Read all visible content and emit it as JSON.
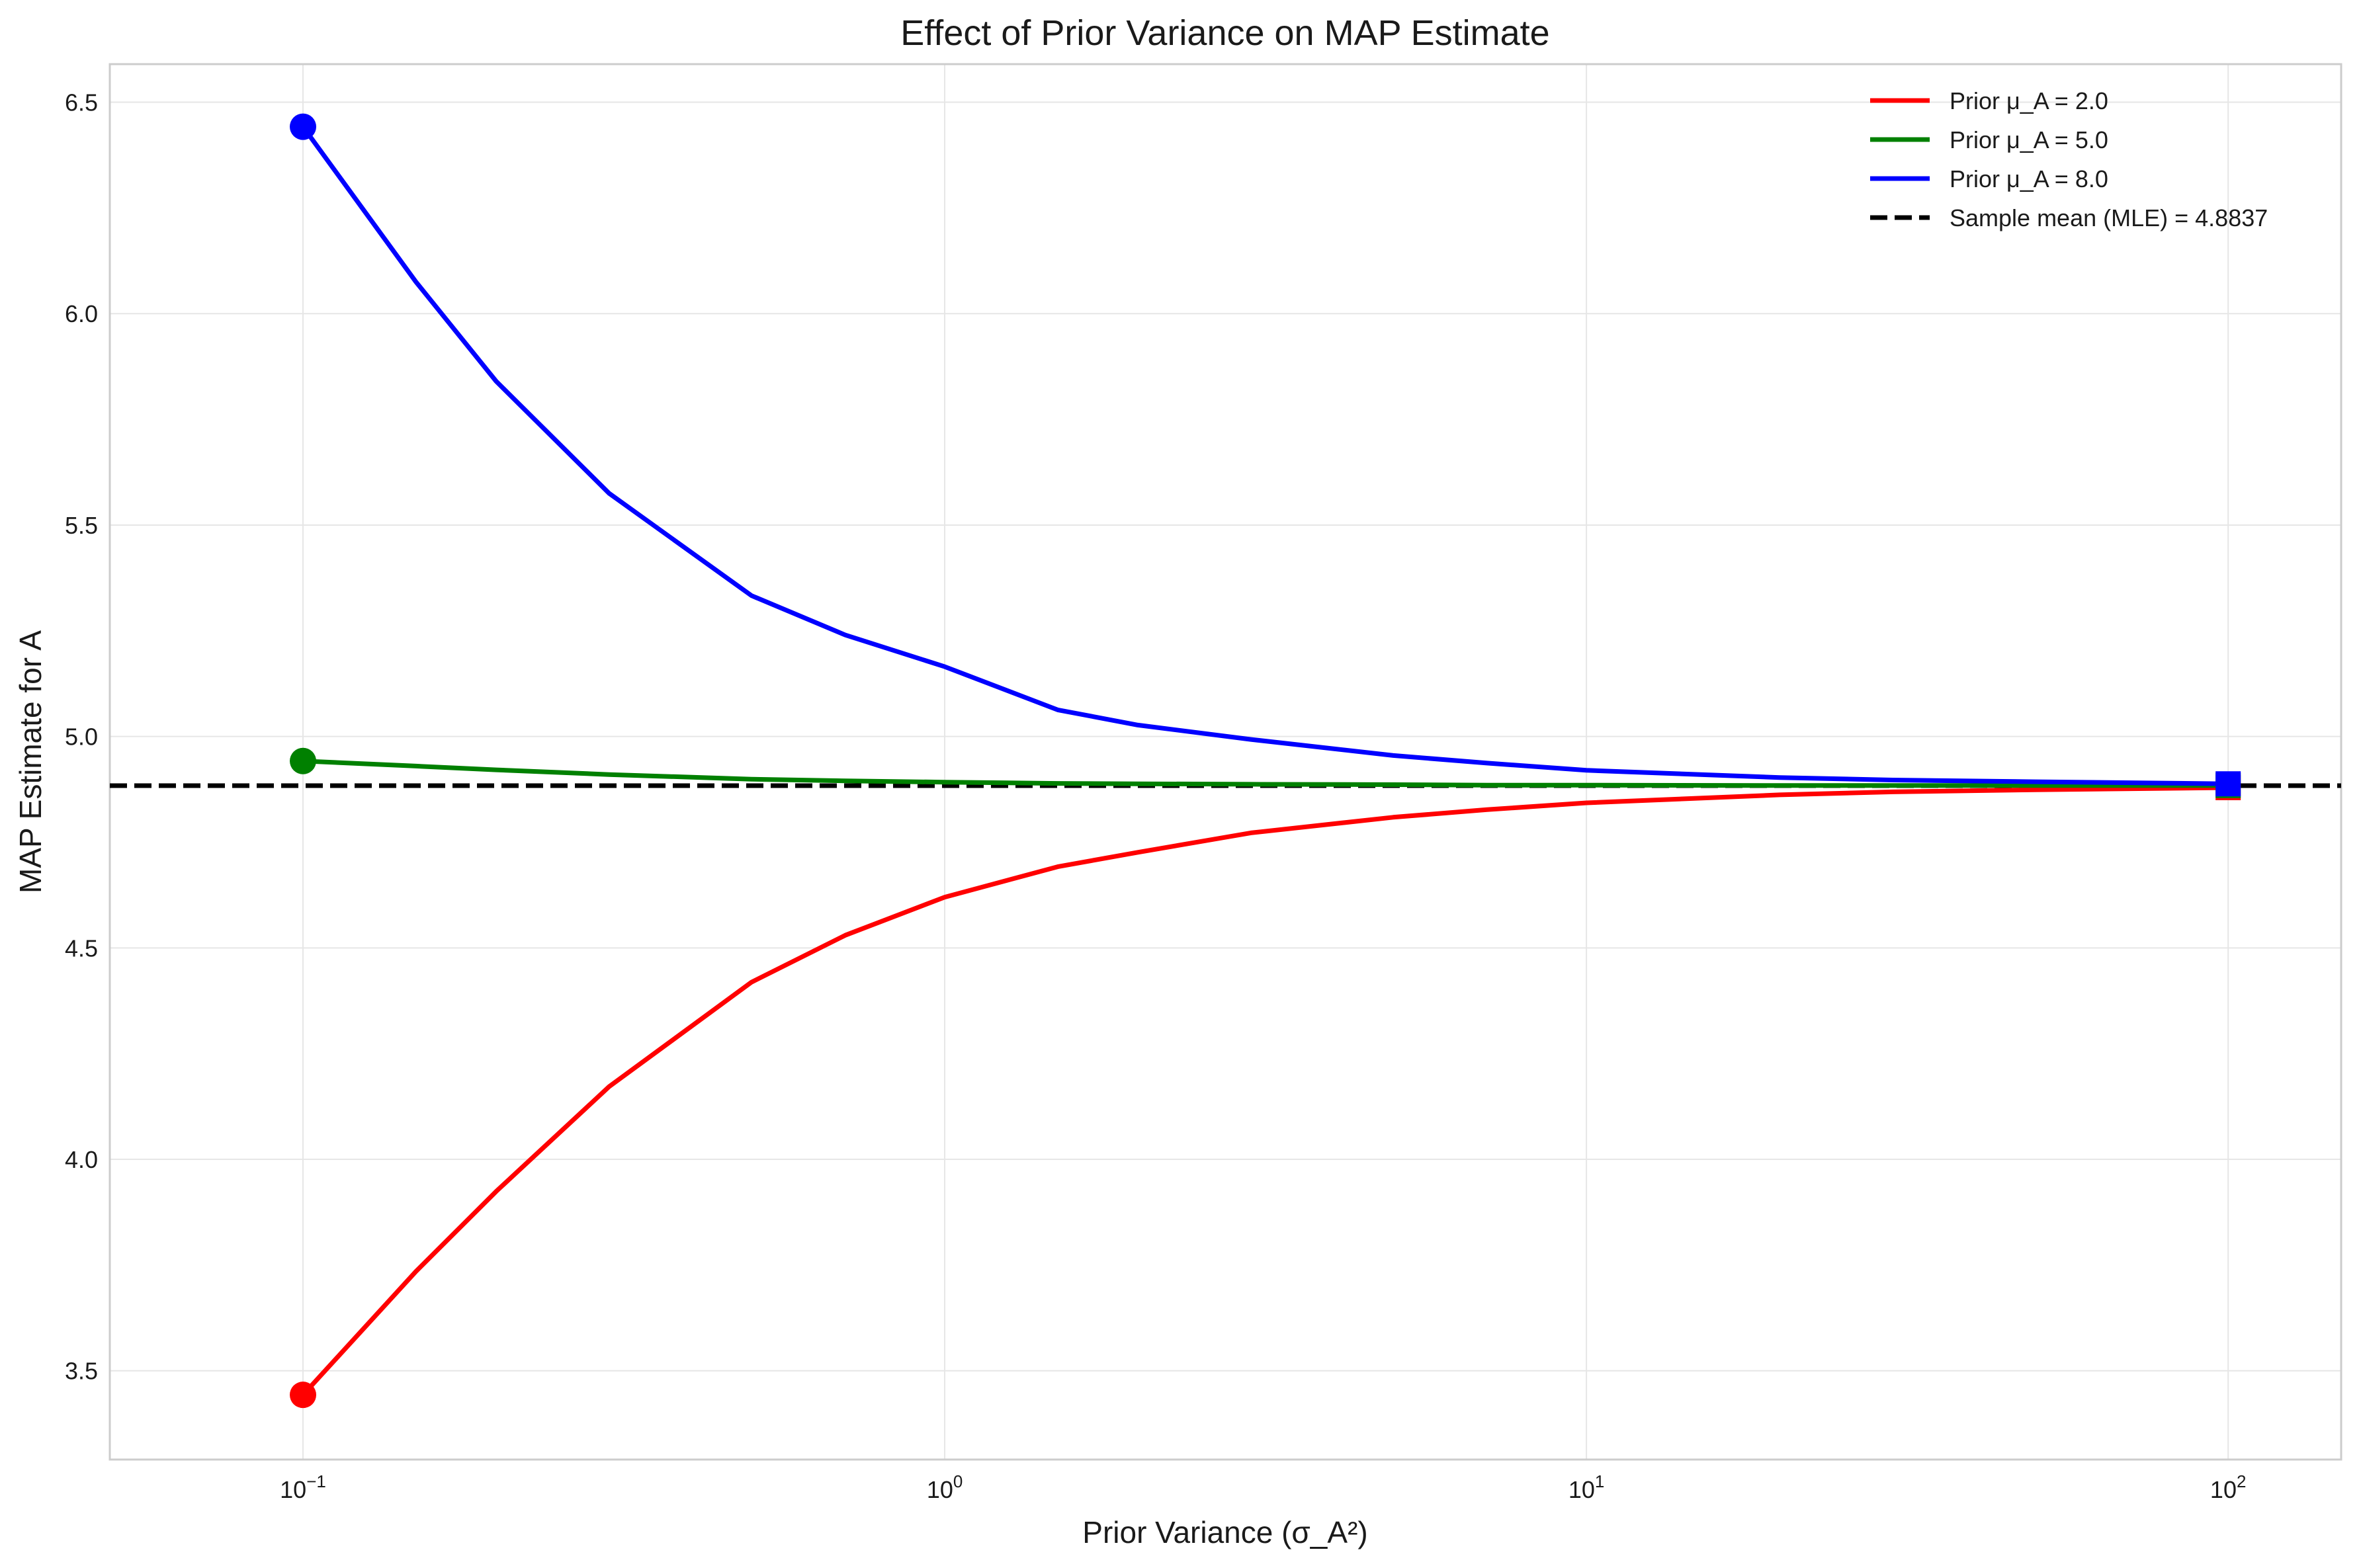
{
  "chart_data": {
    "type": "line",
    "title": "Effect of Prior Variance on MAP Estimate",
    "xlabel": "Prior Variance (σ_A²)",
    "ylabel": "MAP Estimate for A",
    "x_scale": "log",
    "xlim": [
      0.05,
      150
    ],
    "ylim": [
      3.29,
      6.59
    ],
    "x_ticks": [
      {
        "value": 0.1,
        "base": "10",
        "exp": "−1"
      },
      {
        "value": 1,
        "base": "10",
        "exp": "0"
      },
      {
        "value": 10,
        "base": "10",
        "exp": "1"
      },
      {
        "value": 100,
        "base": "10",
        "exp": "2"
      }
    ],
    "y_ticks": [
      {
        "value": 3.5,
        "label": "3.5"
      },
      {
        "value": 4.0,
        "label": "4.0"
      },
      {
        "value": 4.5,
        "label": "4.5"
      },
      {
        "value": 5.0,
        "label": "5.0"
      },
      {
        "value": 5.5,
        "label": "5.5"
      },
      {
        "value": 6.0,
        "label": "6.0"
      },
      {
        "value": 6.5,
        "label": "6.5"
      }
    ],
    "grid": true,
    "legend_position": "top-right",
    "x": [
      0.1,
      0.15,
      0.2,
      0.3,
      0.5,
      0.7,
      1,
      1.5,
      2,
      3,
      5,
      7,
      10,
      20,
      30,
      50,
      100
    ],
    "series": [
      {
        "name": "Prior μ_A = 2.0",
        "color": "#ff0000",
        "values": [
          3.443,
          3.735,
          3.924,
          4.172,
          4.419,
          4.53,
          4.62,
          4.692,
          4.726,
          4.772,
          4.809,
          4.827,
          4.843,
          4.862,
          4.869,
          4.874,
          4.879
        ],
        "start_marker": "circle",
        "end_marker": "square"
      },
      {
        "name": "Prior μ_A = 5.0",
        "color": "#008000",
        "values": [
          4.942,
          4.93,
          4.921,
          4.91,
          4.899,
          4.895,
          4.892,
          4.889,
          4.888,
          4.887,
          4.886,
          4.885,
          4.885,
          4.884,
          4.884,
          4.884,
          4.884
        ],
        "start_marker": "circle",
        "end_marker": "square"
      },
      {
        "name": "Prior μ_A = 8.0",
        "color": "#0000ff",
        "values": [
          6.442,
          6.075,
          5.84,
          5.575,
          5.333,
          5.24,
          5.165,
          5.063,
          5.027,
          4.993,
          4.955,
          4.937,
          4.92,
          4.903,
          4.897,
          4.893,
          4.888
        ],
        "start_marker": "circle",
        "end_marker": "square"
      }
    ],
    "reference_line": {
      "name": "Sample mean (MLE) = 4.8837",
      "value": 4.8837,
      "color": "#000000",
      "style": "dashed"
    }
  }
}
